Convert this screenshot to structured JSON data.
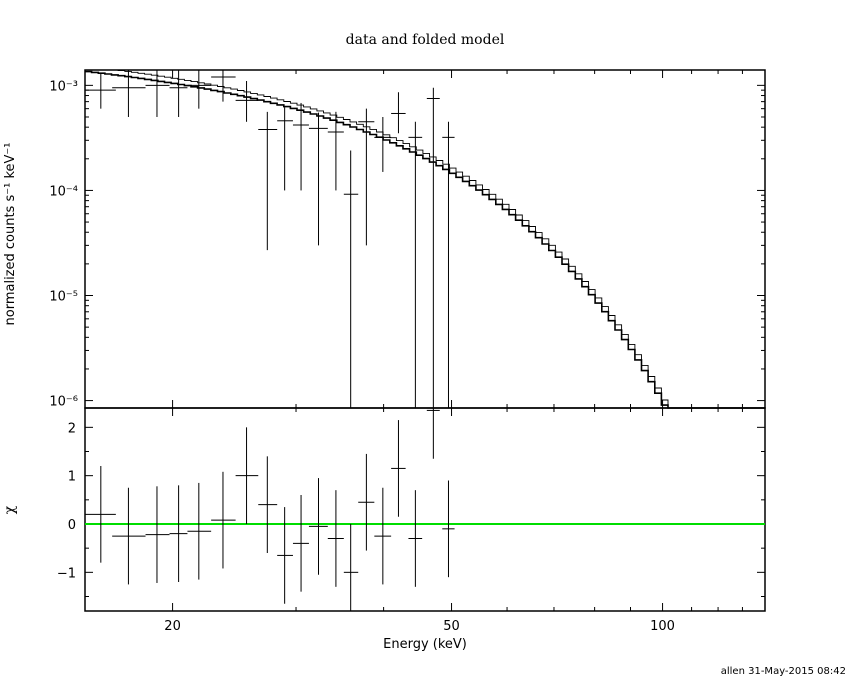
{
  "title": "data and folded model",
  "footer": "allen 31-May-2015 08:42",
  "colors": {
    "frame": "#000000",
    "zero_line": "#00dd00",
    "background": "#ffffff"
  },
  "chart_data": [
    {
      "type": "scatter",
      "panel": "top",
      "title": "data and folded model",
      "ylabel": "normalized counts s⁻¹ keV⁻¹",
      "yscale": "log",
      "xscale": "log",
      "xlim": [
        15,
        140
      ],
      "ylim": [
        8.5e-07,
        0.0014
      ],
      "y_tick_labels": [
        "10⁻⁶",
        "10⁻⁵",
        "10⁻⁴",
        "10⁻³"
      ],
      "grid": false,
      "series": [
        {
          "kind": "data-with-errors",
          "points": [
            {
              "x": 15.8,
              "xlo": 15.0,
              "xhi": 16.6,
              "y": 0.0009,
              "ylo": 0.0006,
              "yhi": 0.0013
            },
            {
              "x": 17.3,
              "xlo": 16.4,
              "xhi": 18.3,
              "y": 0.00095,
              "ylo": 0.0005,
              "yhi": 0.0014
            },
            {
              "x": 19.0,
              "xlo": 18.3,
              "xhi": 19.8,
              "y": 0.001,
              "ylo": 0.0005,
              "yhi": 0.0014
            },
            {
              "x": 20.4,
              "xlo": 19.8,
              "xhi": 21.0,
              "y": 0.00095,
              "ylo": 0.0005,
              "yhi": 0.0014
            },
            {
              "x": 21.8,
              "xlo": 21.0,
              "xhi": 22.7,
              "y": 0.001,
              "ylo": 0.0006,
              "yhi": 0.0014
            },
            {
              "x": 23.6,
              "xlo": 22.7,
              "xhi": 24.6,
              "y": 0.0012,
              "ylo": 0.0007,
              "yhi": 0.0014
            },
            {
              "x": 25.5,
              "xlo": 24.6,
              "xhi": 26.5,
              "y": 0.00072,
              "ylo": 0.00045,
              "yhi": 0.0011
            },
            {
              "x": 27.3,
              "xlo": 26.5,
              "xhi": 28.2,
              "y": 0.00038,
              "ylo": 2.7e-05,
              "yhi": 0.00056
            },
            {
              "x": 28.9,
              "xlo": 28.2,
              "xhi": 29.7,
              "y": 0.00046,
              "ylo": 0.0001,
              "yhi": 0.00062
            },
            {
              "x": 30.5,
              "xlo": 29.7,
              "xhi": 31.3,
              "y": 0.00042,
              "ylo": 0.0001,
              "yhi": 0.00068
            },
            {
              "x": 32.3,
              "xlo": 31.3,
              "xhi": 33.3,
              "y": 0.00039,
              "ylo": 3e-05,
              "yhi": 0.00055
            },
            {
              "x": 34.2,
              "xlo": 33.3,
              "xhi": 35.1,
              "y": 0.00036,
              "ylo": 0.0001,
              "yhi": 0.00056
            },
            {
              "x": 35.9,
              "xlo": 35.1,
              "xhi": 36.8,
              "y": 9.2e-05,
              "ylo": 8.5e-07,
              "yhi": 0.00024
            },
            {
              "x": 37.8,
              "xlo": 36.8,
              "xhi": 38.8,
              "y": 0.00045,
              "ylo": 3e-05,
              "yhi": 0.0006
            },
            {
              "x": 39.9,
              "xlo": 38.8,
              "xhi": 41.0,
              "y": 0.00032,
              "ylo": 0.00015,
              "yhi": 0.0005
            },
            {
              "x": 42.0,
              "xlo": 41.0,
              "xhi": 43.0,
              "y": 0.00054,
              "ylo": 0.00035,
              "yhi": 0.00086
            },
            {
              "x": 44.4,
              "xlo": 43.4,
              "xhi": 45.4,
              "y": 0.00032,
              "ylo": 8.5e-07,
              "yhi": 0.00045
            },
            {
              "x": 47.1,
              "xlo": 46.1,
              "xhi": 48.1,
              "y": 0.00075,
              "ylo": 8.5e-07,
              "yhi": 0.00095
            },
            {
              "x": 49.5,
              "xlo": 48.5,
              "xhi": 50.5,
              "y": 0.00032,
              "ylo": 8.5e-07,
              "yhi": 0.00045
            }
          ]
        },
        {
          "kind": "folded-model-step",
          "name": ""
        }
      ]
    },
    {
      "type": "scatter",
      "panel": "bottom",
      "xlabel": "Energy (keV)",
      "ylabel": "χ",
      "xscale": "log",
      "xlim": [
        15,
        140
      ],
      "ylim": [
        -1.8,
        2.4
      ],
      "x_tick_labels": [
        "20",
        "50",
        "100"
      ],
      "y_tick_labels": [
        "−1",
        "0",
        "1",
        "2"
      ],
      "zero_line": 0,
      "grid": false,
      "series": [
        {
          "kind": "residuals",
          "points": [
            {
              "x": 15.8,
              "xlo": 15.0,
              "xhi": 16.6,
              "y": 0.2,
              "e": 1.0
            },
            {
              "x": 17.3,
              "xlo": 16.4,
              "xhi": 18.3,
              "y": -0.25,
              "e": 1.0
            },
            {
              "x": 19.0,
              "xlo": 18.3,
              "xhi": 19.8,
              "y": -0.22,
              "e": 1.0
            },
            {
              "x": 20.4,
              "xlo": 19.8,
              "xhi": 21.0,
              "y": -0.2,
              "e": 1.0
            },
            {
              "x": 21.8,
              "xlo": 21.0,
              "xhi": 22.7,
              "y": -0.15,
              "e": 1.0
            },
            {
              "x": 23.6,
              "xlo": 22.7,
              "xhi": 24.6,
              "y": 0.08,
              "e": 1.0
            },
            {
              "x": 25.5,
              "xlo": 24.6,
              "xhi": 26.5,
              "y": 1.0,
              "e": 1.0
            },
            {
              "x": 27.3,
              "xlo": 26.5,
              "xhi": 28.2,
              "y": 0.4,
              "e": 1.0
            },
            {
              "x": 28.9,
              "xlo": 28.2,
              "xhi": 29.7,
              "y": -0.65,
              "e": 1.0
            },
            {
              "x": 30.5,
              "xlo": 29.7,
              "xhi": 31.3,
              "y": -0.4,
              "e": 1.0
            },
            {
              "x": 32.3,
              "xlo": 31.3,
              "xhi": 33.3,
              "y": -0.05,
              "e": 1.0
            },
            {
              "x": 34.2,
              "xlo": 33.3,
              "xhi": 35.1,
              "y": -0.3,
              "e": 1.0
            },
            {
              "x": 35.9,
              "xlo": 35.1,
              "xhi": 36.8,
              "y": -1.0,
              "e": 1.0
            },
            {
              "x": 37.8,
              "xlo": 36.8,
              "xhi": 38.8,
              "y": 0.45,
              "e": 1.0
            },
            {
              "x": 39.9,
              "xlo": 38.8,
              "xhi": 41.0,
              "y": -0.25,
              "e": 1.0
            },
            {
              "x": 42.0,
              "xlo": 41.0,
              "xhi": 43.0,
              "y": 1.15,
              "e": 1.0
            },
            {
              "x": 44.4,
              "xlo": 43.4,
              "xhi": 45.4,
              "y": -0.3,
              "e": 1.0
            },
            {
              "x": 47.1,
              "xlo": 46.1,
              "xhi": 48.1,
              "y": 2.35,
              "e": 1.0
            },
            {
              "x": 49.5,
              "xlo": 48.5,
              "xhi": 50.5,
              "y": -0.1,
              "e": 1.0
            }
          ]
        }
      ]
    }
  ]
}
